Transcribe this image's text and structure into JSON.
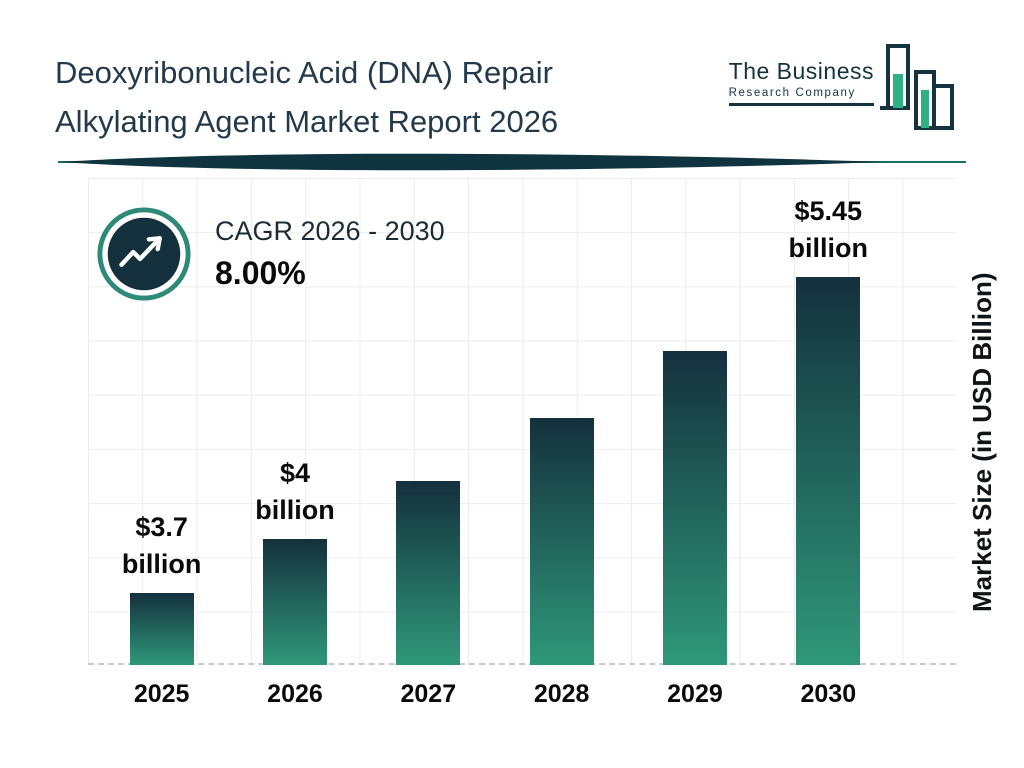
{
  "header": {
    "title_line1": "Deoxyribonucleic Acid (DNA) Repair",
    "title_line2": "Alkylating Agent Market Report 2026",
    "logo": {
      "line1": "The Business",
      "line2": "Research Company"
    }
  },
  "cagr": {
    "label": "CAGR 2026 - 2030",
    "value": "8.00%"
  },
  "chart_data": {
    "type": "bar",
    "title": "Deoxyribonucleic Acid (DNA) Repair Alkylating Agent Market Report 2026",
    "categories": [
      "2025",
      "2026",
      "2027",
      "2028",
      "2029",
      "2030"
    ],
    "values": [
      3.7,
      4.0,
      4.32,
      4.67,
      5.04,
      5.45
    ],
    "bar_labels": [
      [
        "$3.7",
        "billion"
      ],
      [
        "$4",
        "billion"
      ],
      null,
      null,
      null,
      [
        "$5.45",
        "billion"
      ]
    ],
    "xlabel": "",
    "ylabel": "Market Size (in USD Billion)",
    "ylim": [
      3.3,
      6.0
    ],
    "grid": true,
    "legend": "none",
    "colors": {
      "bar_top": "#14303d",
      "bar_bottom": "#2f9878",
      "accent_teal": "#1d6f63",
      "accent_dark": "#0f3440",
      "logo_green": "#2eb184",
      "grid": "#ececec"
    }
  }
}
